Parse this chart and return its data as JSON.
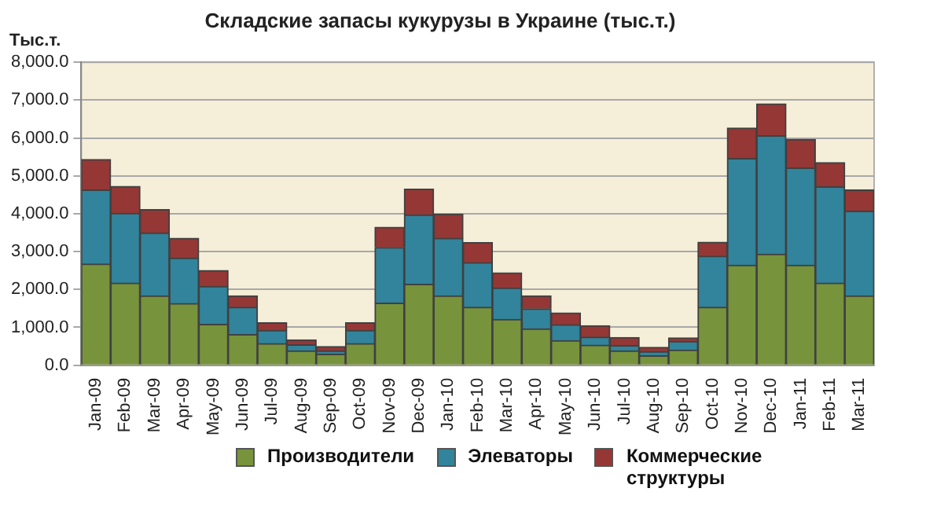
{
  "chart_data": {
    "type": "bar",
    "title": "Складские запасы кукурузы в Украине (тыс.т.)",
    "ylabel": "Тыс.т.",
    "categories": [
      "Jan-09",
      "Feb-09",
      "Mar-09",
      "Apr-09",
      "May-09",
      "Jun-09",
      "Jul-09",
      "Aug-09",
      "Sep-09",
      "Oct-09",
      "Nov-09",
      "Dec-09",
      "Jan-10",
      "Feb-10",
      "Mar-10",
      "Apr-10",
      "May-10",
      "Jun-10",
      "Jul-10",
      "Aug-10",
      "Sep-10",
      "Oct-10",
      "Nov-10",
      "Dec-10",
      "Jan-11",
      "Feb-11",
      "Mar-11"
    ],
    "stacked": true,
    "series": [
      {
        "name": "Производители",
        "color": "#77933c",
        "values": [
          2670,
          2170,
          1830,
          1630,
          1080,
          810,
          570,
          380,
          290,
          570,
          1640,
          2140,
          1830,
          1530,
          1210,
          960,
          650,
          530,
          380,
          250,
          400,
          1530,
          2640,
          2930,
          2640,
          2170,
          1830
        ]
      },
      {
        "name": "Элеваторы",
        "color": "#31849b",
        "values": [
          1960,
          1840,
          1660,
          1200,
          1000,
          720,
          350,
          160,
          90,
          350,
          1470,
          1830,
          1520,
          1180,
          830,
          530,
          420,
          210,
          140,
          110,
          230,
          1350,
          2820,
          3130,
          2570,
          2540,
          2240
        ]
      },
      {
        "name": "Коммерческие структуры",
        "color": "#953735",
        "values": [
          800,
          710,
          620,
          520,
          420,
          300,
          200,
          130,
          110,
          200,
          530,
          680,
          640,
          530,
          400,
          340,
          310,
          300,
          210,
          110,
          90,
          370,
          800,
          840,
          750,
          640,
          560
        ]
      }
    ],
    "ylim": [
      0,
      8000
    ],
    "yticks": [
      {
        "value": 0,
        "label": "0.0"
      },
      {
        "value": 1000,
        "label": "1,000.0"
      },
      {
        "value": 2000,
        "label": "2,000.0"
      },
      {
        "value": 3000,
        "label": "3,000.0"
      },
      {
        "value": 4000,
        "label": "4,000.0"
      },
      {
        "value": 5000,
        "label": "5,000.0"
      },
      {
        "value": 6000,
        "label": "6,000.0"
      },
      {
        "value": 7000,
        "label": "7,000.0"
      },
      {
        "value": 8000,
        "label": "8,000.0"
      }
    ],
    "grid": "y",
    "legend": "bottom"
  }
}
